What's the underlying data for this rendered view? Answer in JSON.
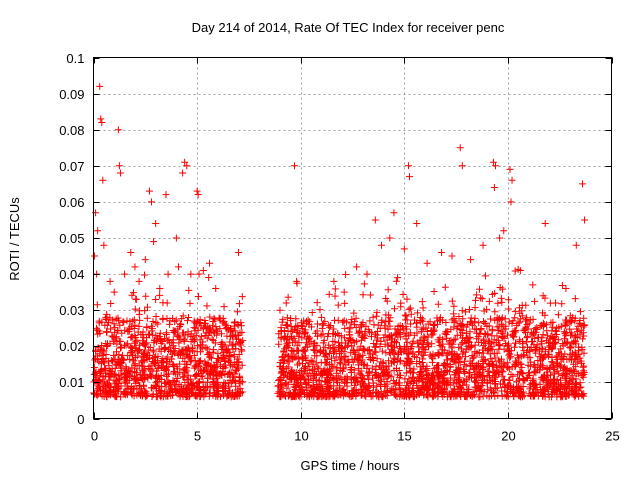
{
  "chart_data": {
    "type": "scatter",
    "title": "Day 214 of 2014, Rate Of TEC Index for receiver penc",
    "xlabel": "GPS time / hours",
    "ylabel": "ROTI / TECUs",
    "xlim": [
      0,
      25
    ],
    "ylim": [
      0,
      0.1
    ],
    "xticks": [
      0,
      5,
      10,
      15,
      20,
      25
    ],
    "xtick_labels": [
      "0",
      "5",
      "10",
      "15",
      "20",
      "25"
    ],
    "yticks": [
      0,
      0.01,
      0.02,
      0.03,
      0.04,
      0.05,
      0.06,
      0.07,
      0.08,
      0.09,
      0.1
    ],
    "ytick_labels": [
      "0",
      "0.01",
      "0.02",
      "0.03",
      "0.04",
      "0.05",
      "0.06",
      "0.07",
      "0.08",
      "0.09",
      "0.1"
    ],
    "grid": true,
    "marker": "+",
    "color": "#ff0000",
    "series": [
      {
        "name": "ROTI",
        "x": [
          0.3,
          0.35,
          0.4,
          0.1,
          0.2,
          0.45,
          1.2,
          1.25,
          1.3,
          2.7,
          2.8,
          3.5,
          3.0,
          4.4,
          4.5,
          4.3,
          5.0,
          5.05,
          4.0,
          7.0,
          9.7,
          17.7,
          17.8,
          19.3,
          19.4,
          19.35,
          20.1,
          20.2,
          20.15,
          15.2,
          15.25,
          13.6,
          14.5,
          23.6,
          23.7,
          19.6,
          21.8,
          0.05,
          0.15,
          0.5,
          0.8,
          1.0,
          1.5,
          1.8,
          2.0,
          2.2,
          2.5,
          2.9,
          3.2,
          3.6,
          4.1,
          4.7,
          5.3,
          5.6,
          5.9,
          6.3,
          6.6,
          6.9,
          9.0,
          9.3,
          9.8,
          10.4,
          11.0,
          11.6,
          12.1,
          12.7,
          13.2,
          13.9,
          14.3,
          15.0,
          15.6,
          16.1,
          16.8,
          17.3,
          18.2,
          18.8,
          19.8,
          20.6,
          21.2,
          21.7,
          22.3,
          22.8,
          23.3
        ],
        "y": [
          0.092,
          0.083,
          0.082,
          0.057,
          0.052,
          0.066,
          0.08,
          0.07,
          0.068,
          0.063,
          0.06,
          0.062,
          0.054,
          0.071,
          0.07,
          0.068,
          0.063,
          0.062,
          0.05,
          0.046,
          0.07,
          0.075,
          0.07,
          0.071,
          0.07,
          0.064,
          0.069,
          0.066,
          0.06,
          0.07,
          0.067,
          0.055,
          0.057,
          0.065,
          0.055,
          0.05,
          0.054,
          0.045,
          0.04,
          0.048,
          0.038,
          0.035,
          0.04,
          0.046,
          0.042,
          0.038,
          0.044,
          0.049,
          0.036,
          0.04,
          0.042,
          0.04,
          0.041,
          0.043,
          0.036,
          0.031,
          0.024,
          0.022,
          0.03,
          0.032,
          0.038,
          0.026,
          0.028,
          0.038,
          0.035,
          0.042,
          0.04,
          0.048,
          0.05,
          0.047,
          0.054,
          0.043,
          0.046,
          0.045,
          0.044,
          0.048,
          0.052,
          0.041,
          0.037,
          0.034,
          0.032,
          0.036,
          0.048
        ],
        "dense_bands_note": "The plot contains several thousand '+' markers densely filling ROTI 0.005-0.03 over 0-7.2 h and 8.9-23.7 h with a data gap 7.2-8.9 h; the listed points are representative high-value excursions."
      }
    ]
  }
}
